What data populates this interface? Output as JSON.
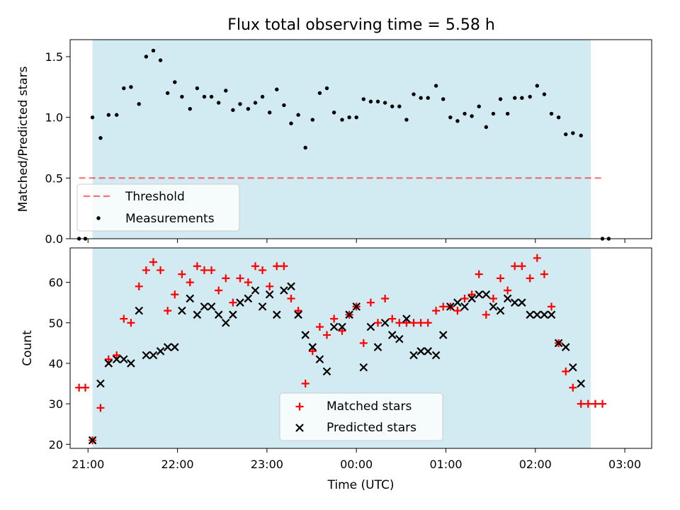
{
  "figure_title": "Flux total observing time = 5.58 h",
  "colors": {
    "shade": "#add8e6",
    "threshold": "#ff0000",
    "measurement": "#000000",
    "matched": "#ff0000",
    "predicted": "#000000"
  },
  "chart_data": [
    {
      "type": "scatter",
      "panel": "top",
      "title": "Flux total observing time = 5.58 h",
      "xlabel": "",
      "ylabel": "Matched/Predicted stars",
      "x_unit": "hours since 21:00 UTC",
      "xlim": [
        -0.2,
        6.3
      ],
      "ylim": [
        0,
        1.64
      ],
      "yticks": [
        0.0,
        0.5,
        1.0,
        1.5
      ],
      "ytick_labels": [
        "0.0",
        "0.5",
        "1.0",
        "1.5"
      ],
      "grid": false,
      "shaded_interval": [
        0.05,
        5.62
      ],
      "threshold": {
        "name": "Threshold",
        "y": 0.5,
        "x_range": [
          -0.1,
          5.75
        ],
        "style": "dashed"
      },
      "legend": {
        "placement": "lower-left",
        "entries": [
          "Threshold",
          "Measurements"
        ]
      },
      "series": [
        {
          "name": "Measurements",
          "marker": "dot",
          "points": [
            [
              -0.1,
              0.0
            ],
            [
              -0.03,
              0.0
            ],
            [
              0.05,
              1.0
            ],
            [
              0.14,
              0.83
            ],
            [
              0.23,
              1.02
            ],
            [
              0.32,
              1.02
            ],
            [
              0.4,
              1.24
            ],
            [
              0.48,
              1.25
            ],
            [
              0.57,
              1.11
            ],
            [
              0.65,
              1.5
            ],
            [
              0.73,
              1.55
            ],
            [
              0.81,
              1.47
            ],
            [
              0.89,
              1.2
            ],
            [
              0.97,
              1.29
            ],
            [
              1.05,
              1.17
            ],
            [
              1.14,
              1.07
            ],
            [
              1.22,
              1.24
            ],
            [
              1.3,
              1.17
            ],
            [
              1.38,
              1.17
            ],
            [
              1.46,
              1.12
            ],
            [
              1.54,
              1.22
            ],
            [
              1.62,
              1.06
            ],
            [
              1.7,
              1.11
            ],
            [
              1.79,
              1.07
            ],
            [
              1.87,
              1.12
            ],
            [
              1.95,
              1.17
            ],
            [
              2.03,
              1.04
            ],
            [
              2.11,
              1.23
            ],
            [
              2.19,
              1.1
            ],
            [
              2.27,
              0.95
            ],
            [
              2.35,
              1.02
            ],
            [
              2.43,
              0.75
            ],
            [
              2.51,
              0.98
            ],
            [
              2.59,
              1.2
            ],
            [
              2.67,
              1.24
            ],
            [
              2.75,
              1.04
            ],
            [
              2.84,
              0.98
            ],
            [
              2.92,
              1.0
            ],
            [
              3.0,
              1.0
            ],
            [
              3.08,
              1.15
            ],
            [
              3.16,
              1.13
            ],
            [
              3.24,
              1.13
            ],
            [
              3.32,
              1.12
            ],
            [
              3.4,
              1.09
            ],
            [
              3.48,
              1.09
            ],
            [
              3.56,
              0.98
            ],
            [
              3.64,
              1.19
            ],
            [
              3.72,
              1.16
            ],
            [
              3.8,
              1.16
            ],
            [
              3.89,
              1.26
            ],
            [
              3.97,
              1.15
            ],
            [
              4.05,
              1.0
            ],
            [
              4.13,
              0.97
            ],
            [
              4.21,
              1.03
            ],
            [
              4.29,
              1.01
            ],
            [
              4.37,
              1.09
            ],
            [
              4.45,
              0.92
            ],
            [
              4.53,
              1.03
            ],
            [
              4.61,
              1.15
            ],
            [
              4.69,
              1.03
            ],
            [
              4.77,
              1.16
            ],
            [
              4.85,
              1.16
            ],
            [
              4.94,
              1.17
            ],
            [
              5.02,
              1.26
            ],
            [
              5.1,
              1.19
            ],
            [
              5.18,
              1.03
            ],
            [
              5.26,
              1.0
            ],
            [
              5.34,
              0.86
            ],
            [
              5.42,
              0.87
            ],
            [
              5.51,
              0.85
            ],
            [
              5.75,
              0.0
            ],
            [
              5.82,
              0.0
            ]
          ]
        }
      ]
    },
    {
      "type": "scatter",
      "panel": "bottom",
      "title": "",
      "xlabel": "Time (UTC)",
      "ylabel": "Count",
      "x_unit": "hours since 21:00 UTC",
      "xlim": [
        -0.2,
        6.3
      ],
      "ylim": [
        19,
        68.5
      ],
      "yticks": [
        20,
        30,
        40,
        50,
        60
      ],
      "ytick_labels": [
        "20",
        "30",
        "40",
        "50",
        "60"
      ],
      "xticks": [
        0,
        1,
        2,
        3,
        4,
        5,
        6
      ],
      "xtick_labels": [
        "21:00",
        "22:00",
        "23:00",
        "00:00",
        "01:00",
        "02:00",
        "03:00"
      ],
      "grid": false,
      "shaded_interval": [
        0.05,
        5.62
      ],
      "legend": {
        "placement": "lower-center",
        "entries": [
          "Matched stars",
          "Predicted stars"
        ]
      },
      "series": [
        {
          "name": "Matched stars",
          "marker": "plus",
          "points": [
            [
              -0.1,
              34
            ],
            [
              -0.03,
              34
            ],
            [
              0.05,
              21
            ],
            [
              0.14,
              29
            ],
            [
              0.23,
              41
            ],
            [
              0.32,
              42
            ],
            [
              0.4,
              51
            ],
            [
              0.48,
              50
            ],
            [
              0.57,
              59
            ],
            [
              0.65,
              63
            ],
            [
              0.73,
              65
            ],
            [
              0.81,
              63
            ],
            [
              0.89,
              53
            ],
            [
              0.97,
              57
            ],
            [
              1.05,
              62
            ],
            [
              1.14,
              60
            ],
            [
              1.22,
              64
            ],
            [
              1.3,
              63
            ],
            [
              1.38,
              63
            ],
            [
              1.46,
              58
            ],
            [
              1.54,
              61
            ],
            [
              1.62,
              55
            ],
            [
              1.7,
              61
            ],
            [
              1.79,
              60
            ],
            [
              1.87,
              64
            ],
            [
              1.95,
              63
            ],
            [
              2.03,
              59
            ],
            [
              2.11,
              64
            ],
            [
              2.19,
              64
            ],
            [
              2.27,
              56
            ],
            [
              2.35,
              53
            ],
            [
              2.43,
              35
            ],
            [
              2.51,
              43
            ],
            [
              2.59,
              49
            ],
            [
              2.67,
              47
            ],
            [
              2.75,
              51
            ],
            [
              2.84,
              48
            ],
            [
              2.92,
              52
            ],
            [
              3.0,
              54
            ],
            [
              3.08,
              45
            ],
            [
              3.16,
              55
            ],
            [
              3.24,
              50
            ],
            [
              3.32,
              56
            ],
            [
              3.4,
              51
            ],
            [
              3.48,
              50
            ],
            [
              3.56,
              50
            ],
            [
              3.64,
              50
            ],
            [
              3.72,
              50
            ],
            [
              3.8,
              50
            ],
            [
              3.89,
              53
            ],
            [
              3.97,
              54
            ],
            [
              4.05,
              54
            ],
            [
              4.13,
              53
            ],
            [
              4.21,
              56
            ],
            [
              4.29,
              57
            ],
            [
              4.37,
              62
            ],
            [
              4.45,
              52
            ],
            [
              4.53,
              56
            ],
            [
              4.61,
              61
            ],
            [
              4.69,
              58
            ],
            [
              4.77,
              64
            ],
            [
              4.85,
              64
            ],
            [
              4.94,
              61
            ],
            [
              5.02,
              66
            ],
            [
              5.1,
              62
            ],
            [
              5.18,
              54
            ],
            [
              5.26,
              45
            ],
            [
              5.34,
              38
            ],
            [
              5.42,
              34
            ],
            [
              5.51,
              30
            ],
            [
              5.59,
              30
            ],
            [
              5.67,
              30
            ],
            [
              5.75,
              30
            ]
          ]
        },
        {
          "name": "Predicted stars",
          "marker": "x",
          "points": [
            [
              0.05,
              21
            ],
            [
              0.14,
              35
            ],
            [
              0.23,
              40
            ],
            [
              0.32,
              41
            ],
            [
              0.4,
              41
            ],
            [
              0.48,
              40
            ],
            [
              0.57,
              53
            ],
            [
              0.65,
              42
            ],
            [
              0.73,
              42
            ],
            [
              0.81,
              43
            ],
            [
              0.89,
              44
            ],
            [
              0.97,
              44
            ],
            [
              1.05,
              53
            ],
            [
              1.14,
              56
            ],
            [
              1.22,
              52
            ],
            [
              1.3,
              54
            ],
            [
              1.38,
              54
            ],
            [
              1.46,
              52
            ],
            [
              1.54,
              50
            ],
            [
              1.62,
              52
            ],
            [
              1.7,
              55
            ],
            [
              1.79,
              56
            ],
            [
              1.87,
              58
            ],
            [
              1.95,
              54
            ],
            [
              2.03,
              57
            ],
            [
              2.11,
              52
            ],
            [
              2.19,
              58
            ],
            [
              2.27,
              59
            ],
            [
              2.35,
              52
            ],
            [
              2.43,
              47
            ],
            [
              2.51,
              44
            ],
            [
              2.59,
              41
            ],
            [
              2.67,
              38
            ],
            [
              2.75,
              49
            ],
            [
              2.84,
              49
            ],
            [
              2.92,
              52
            ],
            [
              3.0,
              54
            ],
            [
              3.08,
              39
            ],
            [
              3.16,
              49
            ],
            [
              3.24,
              44
            ],
            [
              3.32,
              50
            ],
            [
              3.4,
              47
            ],
            [
              3.48,
              46
            ],
            [
              3.56,
              51
            ],
            [
              3.64,
              42
            ],
            [
              3.72,
              43
            ],
            [
              3.8,
              43
            ],
            [
              3.89,
              42
            ],
            [
              3.97,
              47
            ],
            [
              4.05,
              54
            ],
            [
              4.13,
              55
            ],
            [
              4.21,
              54
            ],
            [
              4.29,
              56
            ],
            [
              4.37,
              57
            ],
            [
              4.45,
              57
            ],
            [
              4.53,
              54
            ],
            [
              4.61,
              53
            ],
            [
              4.69,
              56
            ],
            [
              4.77,
              55
            ],
            [
              4.85,
              55
            ],
            [
              4.94,
              52
            ],
            [
              5.02,
              52
            ],
            [
              5.1,
              52
            ],
            [
              5.18,
              52
            ],
            [
              5.26,
              45
            ],
            [
              5.34,
              44
            ],
            [
              5.42,
              39
            ],
            [
              5.51,
              35
            ]
          ]
        }
      ]
    }
  ]
}
